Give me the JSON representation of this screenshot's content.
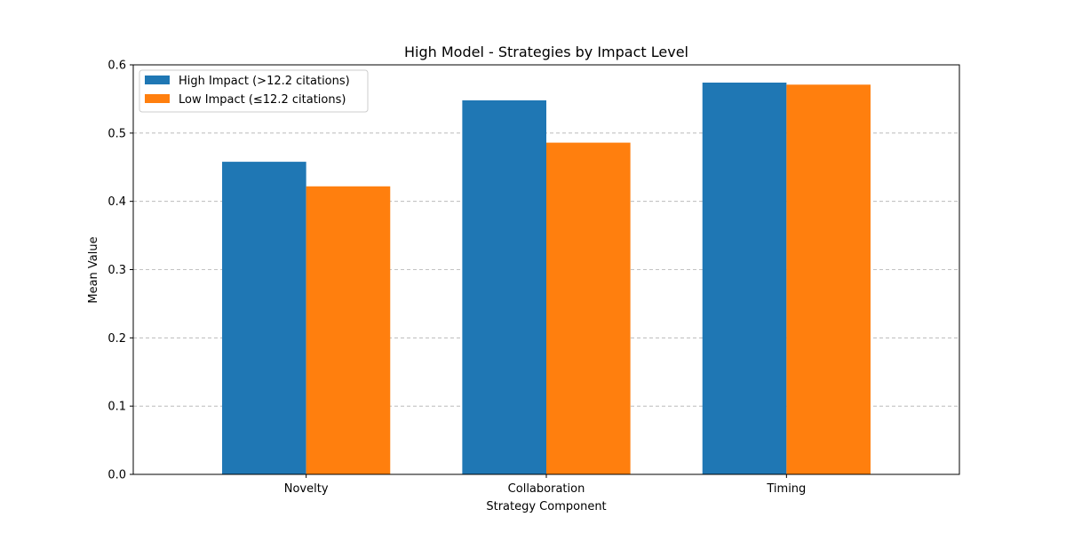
{
  "chart_data": {
    "type": "bar",
    "title": "High Model - Strategies by Impact Level",
    "xlabel": "Strategy Component",
    "ylabel": "Mean Value",
    "categories": [
      "Novelty",
      "Collaboration",
      "Timing"
    ],
    "series": [
      {
        "name": "High Impact (>12.2 citations)",
        "color": "#1f77b4",
        "values": [
          0.458,
          0.548,
          0.574
        ]
      },
      {
        "name": "Low Impact (≤12.2 citations)",
        "color": "#ff7f0e",
        "values": [
          0.422,
          0.486,
          0.571
        ]
      }
    ],
    "ylim": [
      0,
      0.6
    ],
    "yticks": [
      "0.0",
      "0.1",
      "0.2",
      "0.3",
      "0.4",
      "0.5",
      "0.6"
    ],
    "grid": "y-dashed",
    "legend_position": "top-left"
  }
}
